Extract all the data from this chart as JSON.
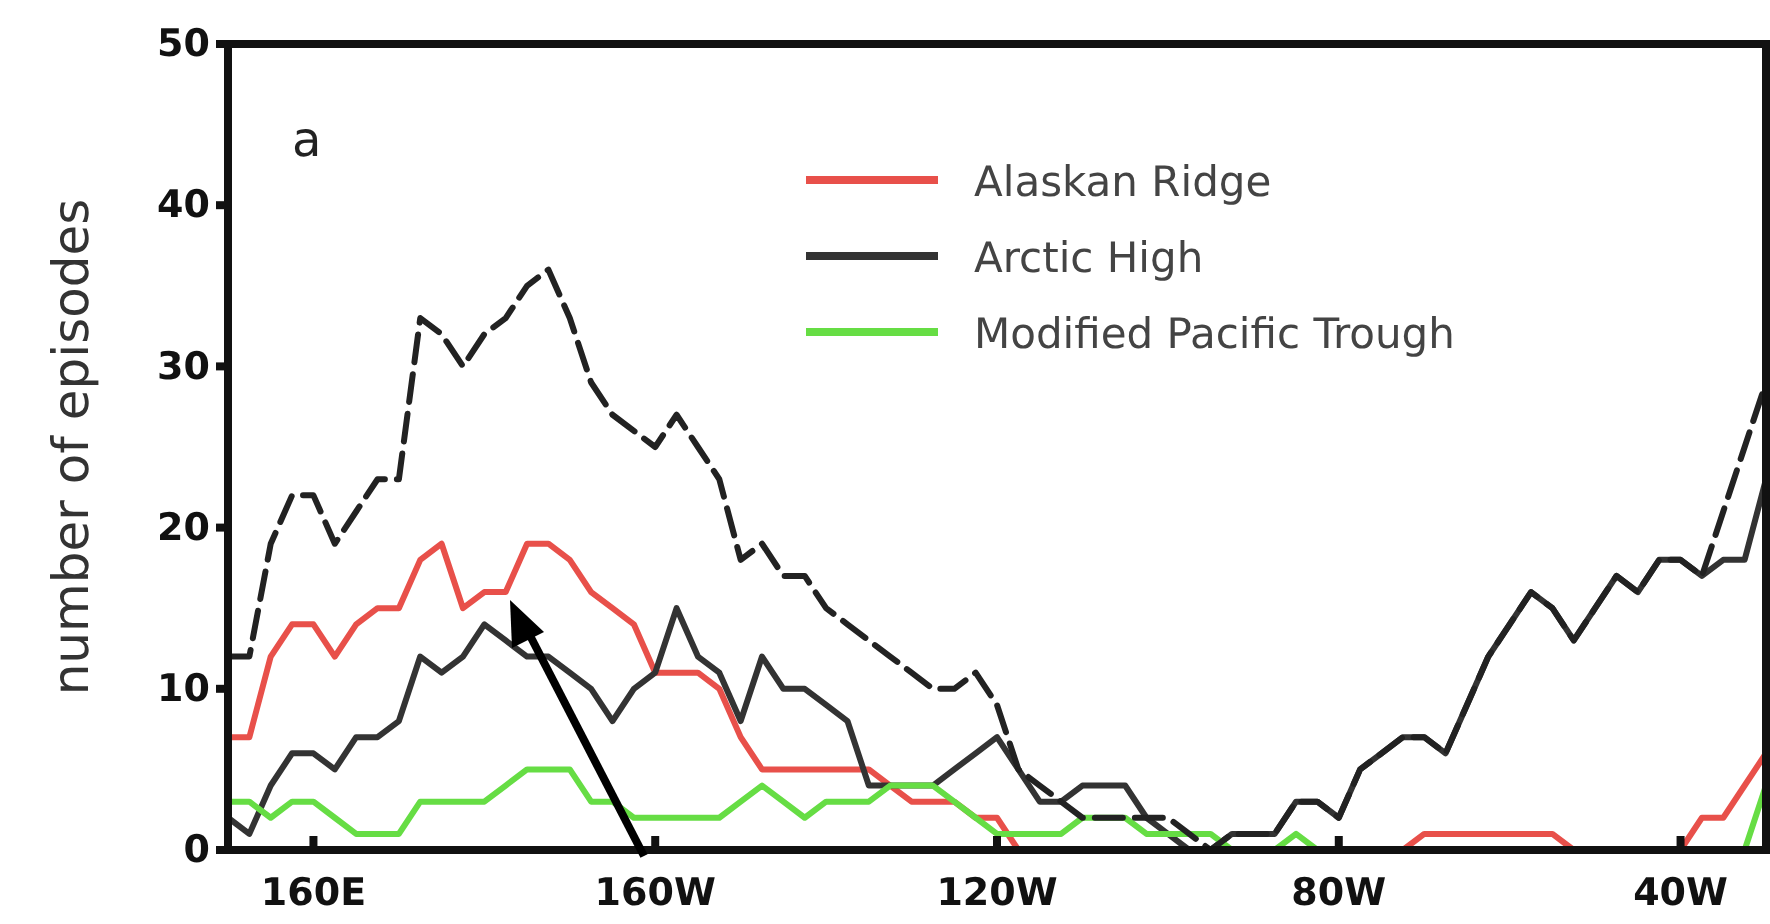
{
  "chart_data": {
    "type": "line",
    "ylabel": "number of episodes",
    "annotations": [
      "a"
    ],
    "categories": [
      null,
      null,
      null,
      null,
      "160E",
      null,
      null,
      null,
      null,
      null,
      null,
      null,
      null,
      null,
      null,
      null,
      null,
      null,
      null,
      null,
      "160W",
      null,
      null,
      null,
      null,
      null,
      null,
      null,
      null,
      null,
      null,
      null,
      null,
      null,
      null,
      null,
      "120W",
      null,
      null,
      null,
      null,
      null,
      null,
      null,
      null,
      null,
      null,
      null,
      null,
      null,
      null,
      null,
      "80W",
      null,
      null,
      null,
      null,
      null,
      null,
      null,
      null,
      null,
      null,
      null,
      null,
      null,
      null,
      null,
      "40W",
      null,
      null,
      null,
      null
    ],
    "ylim": [
      0,
      50
    ],
    "yticks": [
      0,
      10,
      20,
      30,
      40,
      50
    ],
    "legend": "top right",
    "series": [
      {
        "name": "Alaskan Ridge",
        "color": "#e8504a",
        "line_style": "solid",
        "values": [
          7,
          7,
          12,
          14,
          14,
          12,
          14,
          15,
          15,
          18,
          19,
          15,
          16,
          16,
          19,
          19,
          18,
          16,
          15,
          14,
          11,
          11,
          11,
          10,
          7,
          5,
          5,
          5,
          5,
          5,
          5,
          4,
          3,
          3,
          3,
          2,
          2,
          0,
          0,
          0,
          0,
          0,
          0,
          0,
          0,
          0,
          0,
          0,
          0,
          0,
          0,
          0,
          0,
          0,
          0,
          0,
          1,
          1,
          1,
          1,
          1,
          1,
          1,
          0,
          0,
          0,
          0,
          0,
          0,
          2,
          2,
          4,
          6
        ]
      },
      {
        "name": "Arctic High",
        "color": "#333333",
        "line_style": "solid",
        "values": [
          2,
          1,
          4,
          6,
          6,
          5,
          7,
          7,
          8,
          12,
          11,
          12,
          14,
          13,
          12,
          12,
          11,
          10,
          8,
          10,
          11,
          15,
          12,
          11,
          8,
          12,
          10,
          10,
          9,
          8,
          4,
          4,
          4,
          4,
          5,
          6,
          7,
          5,
          3,
          3,
          4,
          4,
          4,
          2,
          1,
          0,
          0,
          1,
          1,
          1,
          3,
          3,
          2,
          5,
          6,
          7,
          7,
          6,
          9,
          12,
          14,
          16,
          15,
          13,
          15,
          17,
          16,
          18,
          18,
          17,
          18,
          18,
          23
        ]
      },
      {
        "name": "Modified Pacific Trough",
        "color": "#66dd44",
        "line_style": "solid",
        "values": [
          3,
          3,
          2,
          3,
          3,
          2,
          1,
          1,
          1,
          3,
          3,
          3,
          3,
          4,
          5,
          5,
          5,
          3,
          3,
          2,
          2,
          2,
          2,
          2,
          3,
          4,
          3,
          2,
          3,
          3,
          3,
          4,
          4,
          4,
          3,
          2,
          1,
          1,
          1,
          1,
          2,
          2,
          2,
          1,
          1,
          1,
          1,
          0,
          0,
          0,
          1,
          0,
          0,
          0,
          0,
          0,
          0,
          0,
          0,
          0,
          0,
          0,
          0,
          0,
          0,
          0,
          0,
          0,
          0,
          0,
          0,
          0,
          4
        ]
      },
      {
        "color": "#222222",
        "line_style": "dashed",
        "values": [
          12,
          12,
          19,
          22,
          22,
          19,
          21,
          23,
          23,
          33,
          32,
          30,
          32,
          33,
          35,
          36,
          33,
          29,
          27,
          26,
          25,
          27,
          25,
          23,
          18,
          19,
          17,
          17,
          15,
          14,
          13,
          12,
          11,
          10,
          10,
          11,
          9,
          5,
          4,
          3,
          2,
          2,
          2,
          2,
          2,
          1,
          0,
          1,
          1,
          1,
          3,
          3,
          2,
          5,
          6,
          7,
          7,
          6,
          9,
          12,
          14,
          16,
          15,
          13,
          15,
          17,
          16,
          18,
          18,
          17,
          21,
          25,
          29
        ]
      }
    ]
  }
}
